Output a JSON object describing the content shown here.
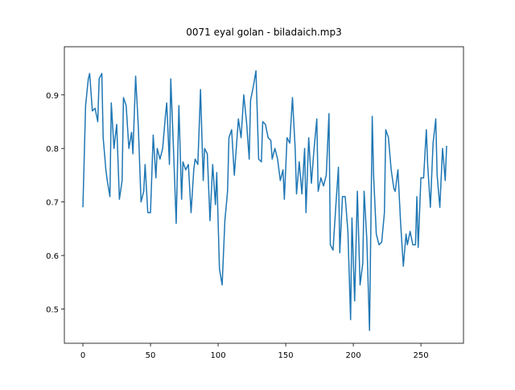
{
  "chart_data": {
    "type": "line",
    "title": "0071 eyal golan - biladaich.mp3",
    "x": [
      0,
      2,
      4,
      5,
      7,
      9,
      11,
      12,
      14,
      15,
      17,
      18,
      20,
      21,
      23,
      25,
      27,
      29,
      30,
      32,
      34,
      36,
      37,
      39,
      41,
      43,
      45,
      46,
      48,
      50,
      52,
      54,
      55,
      57,
      59,
      61,
      62,
      64,
      65,
      67,
      69,
      71,
      73,
      74,
      76,
      78,
      80,
      82,
      83,
      85,
      87,
      89,
      90,
      92,
      94,
      96,
      98,
      99,
      101,
      103,
      105,
      107,
      108,
      110,
      112,
      114,
      115,
      117,
      119,
      121,
      123,
      124,
      126,
      128,
      130,
      132,
      133,
      135,
      137,
      139,
      140,
      142,
      144,
      146,
      148,
      149,
      151,
      153,
      155,
      157,
      158,
      160,
      162,
      164,
      165,
      167,
      169,
      171,
      173,
      174,
      176,
      178,
      180,
      182,
      183,
      185,
      187,
      189,
      190,
      192,
      194,
      196,
      198,
      199,
      201,
      203,
      205,
      207,
      208,
      210,
      212,
      214,
      215,
      217,
      219,
      221,
      223,
      224,
      226,
      228,
      230,
      231,
      233,
      235,
      237,
      239,
      240,
      242,
      244,
      246,
      247,
      248,
      250,
      252,
      254,
      255,
      257,
      259,
      261,
      262,
      264,
      266,
      268,
      269
    ],
    "series": [
      {
        "color": "#1f77b4",
        "values": [
          0.69,
          0.88,
          0.93,
          0.94,
          0.87,
          0.875,
          0.85,
          0.93,
          0.94,
          0.82,
          0.76,
          0.74,
          0.71,
          0.885,
          0.8,
          0.845,
          0.705,
          0.74,
          0.895,
          0.88,
          0.8,
          0.83,
          0.79,
          0.935,
          0.84,
          0.7,
          0.72,
          0.77,
          0.68,
          0.68,
          0.825,
          0.745,
          0.8,
          0.78,
          0.8,
          0.86,
          0.885,
          0.77,
          0.93,
          0.8,
          0.66,
          0.88,
          0.705,
          0.775,
          0.76,
          0.77,
          0.68,
          0.76,
          0.78,
          0.77,
          0.91,
          0.74,
          0.8,
          0.79,
          0.665,
          0.77,
          0.695,
          0.755,
          0.575,
          0.545,
          0.665,
          0.72,
          0.82,
          0.835,
          0.75,
          0.82,
          0.855,
          0.82,
          0.9,
          0.85,
          0.78,
          0.89,
          0.915,
          0.945,
          0.78,
          0.775,
          0.85,
          0.845,
          0.82,
          0.815,
          0.78,
          0.8,
          0.78,
          0.74,
          0.76,
          0.705,
          0.82,
          0.81,
          0.895,
          0.8,
          0.715,
          0.775,
          0.715,
          0.8,
          0.68,
          0.82,
          0.735,
          0.8,
          0.855,
          0.72,
          0.745,
          0.73,
          0.75,
          0.865,
          0.62,
          0.61,
          0.69,
          0.765,
          0.605,
          0.71,
          0.71,
          0.645,
          0.48,
          0.67,
          0.515,
          0.72,
          0.545,
          0.585,
          0.72,
          0.63,
          0.46,
          0.86,
          0.75,
          0.64,
          0.62,
          0.625,
          0.68,
          0.835,
          0.82,
          0.76,
          0.725,
          0.72,
          0.76,
          0.66,
          0.58,
          0.64,
          0.62,
          0.645,
          0.62,
          0.62,
          0.71,
          0.615,
          0.745,
          0.745,
          0.835,
          0.77,
          0.69,
          0.81,
          0.855,
          0.75,
          0.69,
          0.8,
          0.74,
          0.805
        ]
      }
    ],
    "xlim": [
      -13.7,
      281.5
    ],
    "ylim": [
      0.436,
      0.99
    ],
    "xticks": [
      0,
      50,
      100,
      150,
      200,
      250
    ],
    "yticks": [
      0.5,
      0.6,
      0.7,
      0.8,
      0.9
    ]
  }
}
